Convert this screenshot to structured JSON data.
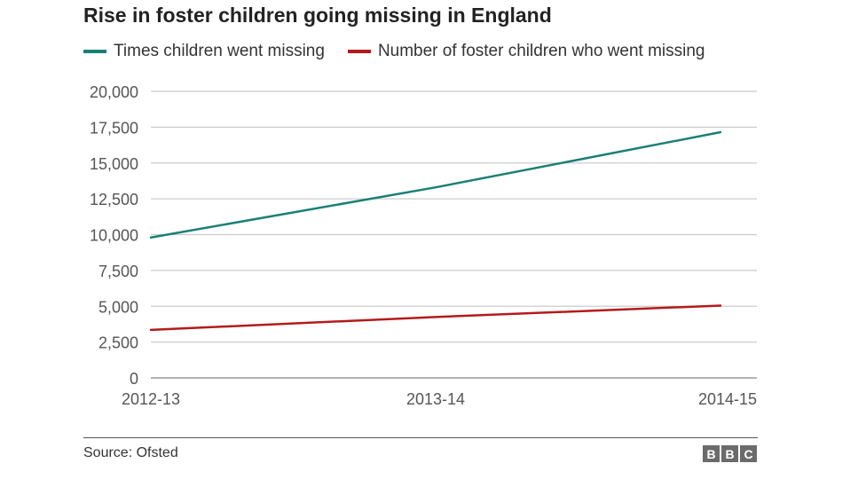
{
  "chart_data": {
    "type": "line",
    "title": "Rise in foster children going missing in England",
    "categories": [
      "2012-13",
      "2013-14",
      "2014-15"
    ],
    "series": [
      {
        "name": "Times children went missing",
        "color": "#1a8076",
        "values": [
          9800,
          13300,
          17150
        ]
      },
      {
        "name": "Number of foster children who went missing",
        "color": "#b31b1b",
        "values": [
          3350,
          4250,
          5050
        ]
      }
    ],
    "yticks": [
      "0",
      "2,500",
      "5,000",
      "7,500",
      "10,000",
      "12,500",
      "15,000",
      "17,500",
      "20,000"
    ],
    "ylim": [
      0,
      20000
    ],
    "ystep": 2500,
    "grid": true,
    "legend_position": "top-left",
    "xlabel": "",
    "ylabel": ""
  },
  "footer": {
    "source": "Source: Ofsted",
    "logo_letters": [
      "B",
      "B",
      "C"
    ]
  }
}
